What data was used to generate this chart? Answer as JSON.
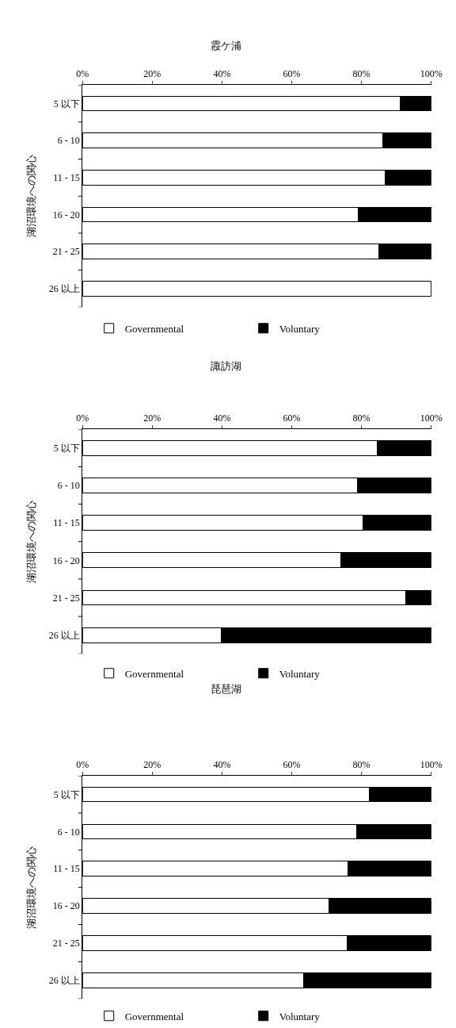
{
  "chart_data": [
    {
      "type": "bar",
      "title": "霞ケ浦",
      "ylabel": "湖沼環境への関心",
      "orientation": "horizontal",
      "stacked": true,
      "legend": "bottom",
      "categories": [
        "5 以下",
        "6 - 10",
        "11 - 15",
        "16 - 20",
        "21 - 25",
        "26 以上"
      ],
      "series": [
        {
          "name": "Governmental",
          "color": "#ffffff",
          "values": [
            91,
            86.2,
            86.7,
            79,
            85,
            100
          ]
        },
        {
          "name": "Voluntary",
          "color": "#000000",
          "values": [
            9,
            13.8,
            13.3,
            21,
            15,
            0
          ]
        }
      ],
      "xlim": [
        0,
        100
      ],
      "xticks": [
        {
          "value": 0,
          "label": "0%"
        },
        {
          "value": 20,
          "label": "20%"
        },
        {
          "value": 40,
          "label": "40%"
        },
        {
          "value": 60,
          "label": "60%"
        },
        {
          "value": 80,
          "label": "80%"
        },
        {
          "value": 100,
          "label": "100%"
        }
      ]
    },
    {
      "type": "bar",
      "title": "諏訪湖",
      "ylabel": "湖沼環境への関心",
      "orientation": "horizontal",
      "stacked": true,
      "legend": "bottom",
      "categories": [
        "5 以下",
        "6 - 10",
        "11 - 15",
        "16 - 20",
        "21 - 25",
        "26 以上"
      ],
      "series": [
        {
          "name": "Governmental",
          "color": "#ffffff",
          "values": [
            84.5,
            78.8,
            80.5,
            74,
            92.8,
            39.9
          ]
        },
        {
          "name": "Voluntary",
          "color": "#000000",
          "values": [
            15.5,
            21.2,
            19.5,
            26,
            7.2,
            60.1
          ]
        }
      ],
      "xlim": [
        0,
        100
      ],
      "xticks": [
        {
          "value": 0,
          "label": "0%"
        },
        {
          "value": 20,
          "label": "20%"
        },
        {
          "value": 40,
          "label": "40%"
        },
        {
          "value": 60,
          "label": "60%"
        },
        {
          "value": 80,
          "label": "80%"
        },
        {
          "value": 100,
          "label": "100%"
        }
      ]
    },
    {
      "type": "bar",
      "title": "琵琶湖",
      "ylabel": "湖沼環境への関心",
      "orientation": "horizontal",
      "stacked": true,
      "legend": "bottom",
      "categories": [
        "5 以下",
        "6 - 10",
        "11 - 15",
        "16 - 20",
        "21 - 25",
        "26 以上"
      ],
      "series": [
        {
          "name": "Governmental",
          "color": "#ffffff",
          "values": [
            82.3,
            78.6,
            76.2,
            70.6,
            75.9,
            63.5
          ]
        },
        {
          "name": "Voluntary",
          "color": "#000000",
          "values": [
            17.7,
            21.4,
            23.8,
            29.4,
            24.1,
            36.5
          ]
        }
      ],
      "xlim": [
        0,
        100
      ],
      "xticks": [
        {
          "value": 0,
          "label": "0%"
        },
        {
          "value": 20,
          "label": "20%"
        },
        {
          "value": 40,
          "label": "40%"
        },
        {
          "value": 60,
          "label": "60%"
        },
        {
          "value": 80,
          "label": "80%"
        },
        {
          "value": 100,
          "label": "100%"
        }
      ]
    }
  ]
}
